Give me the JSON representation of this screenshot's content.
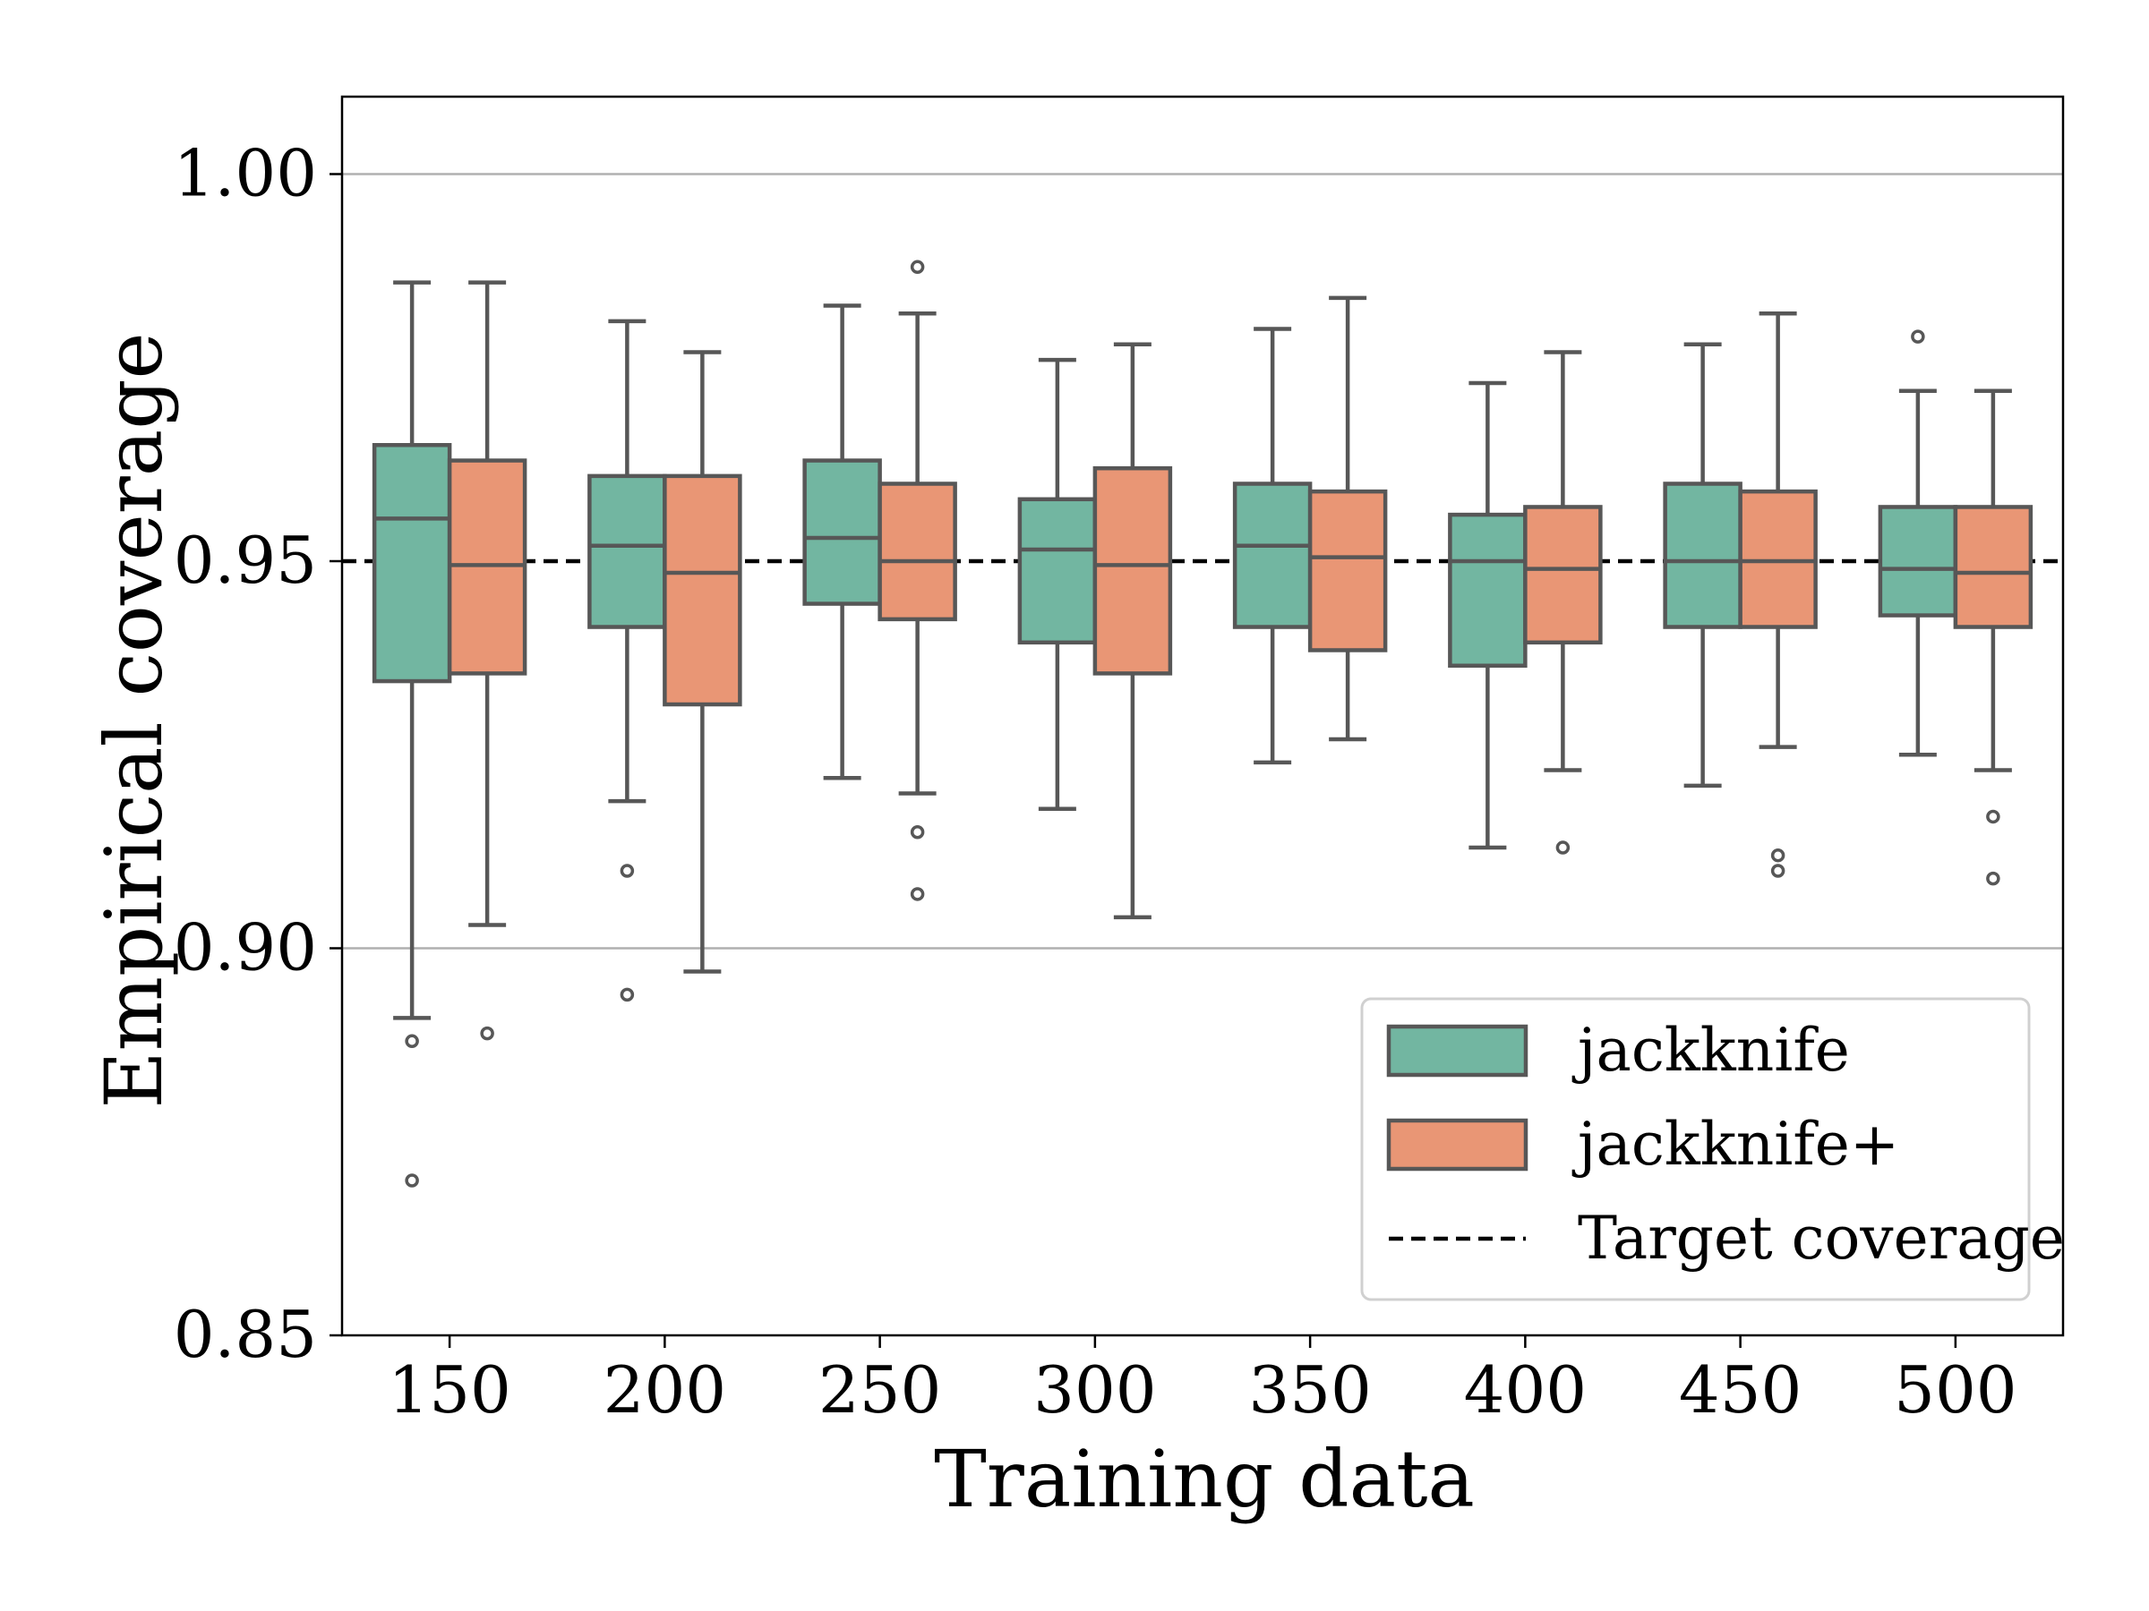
{
  "chart_data": {
    "type": "box",
    "xlabel": "Training data",
    "ylabel": "Empirical coverage",
    "ylim": [
      0.85,
      1.01
    ],
    "yticks": [
      "0.85",
      "0.90",
      "0.95",
      "1.00"
    ],
    "ytick_values": [
      0.85,
      0.9,
      0.95,
      1.0
    ],
    "grid": "horizontal at 0.90 and 1.00",
    "categories": [
      "150",
      "200",
      "250",
      "300",
      "350",
      "400",
      "450",
      "500"
    ],
    "target_coverage": 0.95,
    "legend": {
      "position": "lower-right",
      "entries": [
        "jackknife",
        "jackknife+",
        "Target coverage"
      ]
    },
    "series": [
      {
        "name": "jackknife",
        "color": "#72b6a1",
        "boxes": [
          {
            "whislo": 0.891,
            "q1": 0.9345,
            "med": 0.9555,
            "q3": 0.965,
            "whishi": 0.986,
            "fliers": [
              0.888,
              0.87
            ]
          },
          {
            "whislo": 0.919,
            "q1": 0.9415,
            "med": 0.952,
            "q3": 0.961,
            "whishi": 0.981,
            "fliers": [
              0.91,
              0.894
            ]
          },
          {
            "whislo": 0.922,
            "q1": 0.9445,
            "med": 0.953,
            "q3": 0.963,
            "whishi": 0.983,
            "fliers": []
          },
          {
            "whislo": 0.918,
            "q1": 0.9395,
            "med": 0.9515,
            "q3": 0.958,
            "whishi": 0.976,
            "fliers": []
          },
          {
            "whislo": 0.924,
            "q1": 0.9415,
            "med": 0.952,
            "q3": 0.96,
            "whishi": 0.98,
            "fliers": []
          },
          {
            "whislo": 0.913,
            "q1": 0.9365,
            "med": 0.95,
            "q3": 0.956,
            "whishi": 0.973,
            "fliers": []
          },
          {
            "whislo": 0.921,
            "q1": 0.9415,
            "med": 0.95,
            "q3": 0.96,
            "whishi": 0.978,
            "fliers": []
          },
          {
            "whislo": 0.925,
            "q1": 0.943,
            "med": 0.949,
            "q3": 0.957,
            "whishi": 0.972,
            "fliers": [
              0.979
            ]
          }
        ]
      },
      {
        "name": "jackknife+",
        "color": "#e99675",
        "boxes": [
          {
            "whislo": 0.903,
            "q1": 0.9355,
            "med": 0.9495,
            "q3": 0.963,
            "whishi": 0.986,
            "fliers": [
              0.889
            ]
          },
          {
            "whislo": 0.897,
            "q1": 0.9315,
            "med": 0.9485,
            "q3": 0.961,
            "whishi": 0.977,
            "fliers": []
          },
          {
            "whislo": 0.92,
            "q1": 0.9425,
            "med": 0.95,
            "q3": 0.96,
            "whishi": 0.982,
            "fliers": [
              0.988,
              0.915,
              0.907
            ]
          },
          {
            "whislo": 0.904,
            "q1": 0.9355,
            "med": 0.9495,
            "q3": 0.962,
            "whishi": 0.978,
            "fliers": []
          },
          {
            "whislo": 0.927,
            "q1": 0.9385,
            "med": 0.9505,
            "q3": 0.959,
            "whishi": 0.984,
            "fliers": []
          },
          {
            "whislo": 0.923,
            "q1": 0.9395,
            "med": 0.949,
            "q3": 0.957,
            "whishi": 0.977,
            "fliers": [
              0.913
            ]
          },
          {
            "whislo": 0.926,
            "q1": 0.9415,
            "med": 0.95,
            "q3": 0.959,
            "whishi": 0.982,
            "fliers": [
              0.912,
              0.91
            ]
          },
          {
            "whislo": 0.923,
            "q1": 0.9415,
            "med": 0.9485,
            "q3": 0.957,
            "whishi": 0.972,
            "fliers": [
              0.917,
              0.909
            ]
          }
        ]
      }
    ]
  }
}
